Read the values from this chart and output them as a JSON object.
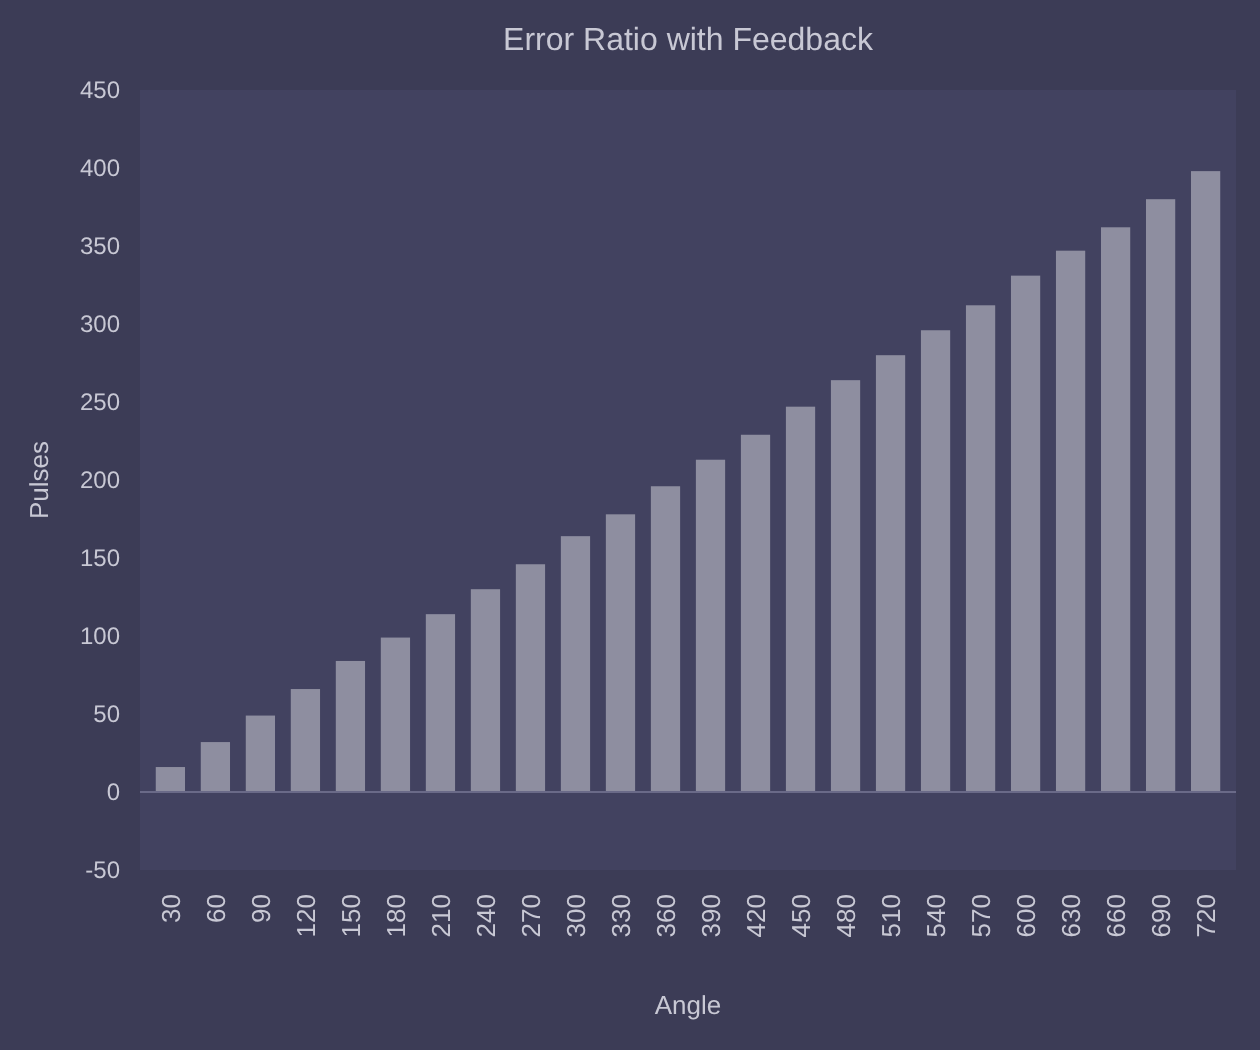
{
  "chart_data": {
    "type": "bar",
    "title": "Error Ratio with Feedback",
    "xlabel": "Angle",
    "ylabel": "Pulses",
    "categories": [
      "30",
      "60",
      "90",
      "120",
      "150",
      "180",
      "210",
      "240",
      "270",
      "300",
      "330",
      "360",
      "390",
      "420",
      "450",
      "480",
      "510",
      "540",
      "570",
      "600",
      "630",
      "660",
      "690",
      "720"
    ],
    "values": [
      16,
      32,
      49,
      66,
      84,
      99,
      114,
      130,
      146,
      164,
      178,
      196,
      213,
      229,
      247,
      264,
      280,
      296,
      312,
      331,
      347,
      362,
      380,
      398
    ],
    "color": "#8e8ea0",
    "ylim": [
      -50,
      450
    ],
    "yticks": [
      -50,
      0,
      50,
      100,
      150,
      200,
      250,
      300,
      350,
      400,
      450
    ]
  }
}
